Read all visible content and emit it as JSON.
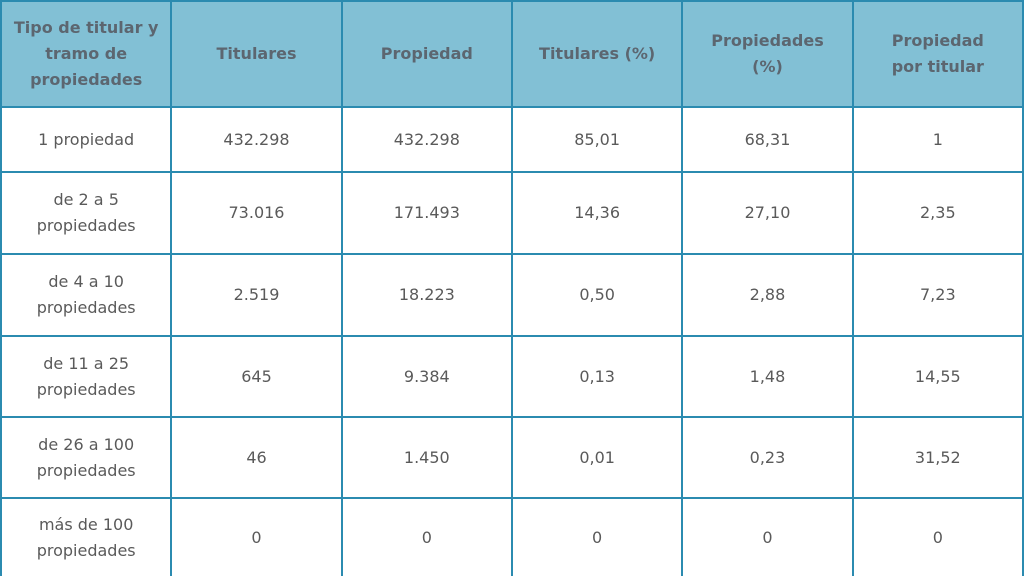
{
  "table": {
    "header": [
      "Tipo de titular y tramo de propiedades",
      "Titulares",
      "Propiedad",
      "Titulares (%)",
      "Propiedades (%)",
      "Propiedad por titular"
    ],
    "rows": [
      [
        "1 propiedad",
        "432.298",
        "432.298",
        "85,01",
        "68,31",
        "1"
      ],
      [
        "de 2 a 5 propiedades",
        "73.016",
        "171.493",
        "14,36",
        "27,10",
        "2,35"
      ],
      [
        "de 4 a 10 propiedades",
        "2.519",
        "18.223",
        "0,50",
        "2,88",
        "7,23"
      ],
      [
        "de 11 a 25 propiedades",
        "645",
        "9.384",
        "0,13",
        "1,48",
        "14,55"
      ],
      [
        "de 26 a 100 propiedades",
        "46",
        "1.450",
        "0,01",
        "0,23",
        "31,52"
      ],
      [
        "más de 100 propiedades",
        "0",
        "0",
        "0",
        "0",
        "0"
      ]
    ]
  }
}
